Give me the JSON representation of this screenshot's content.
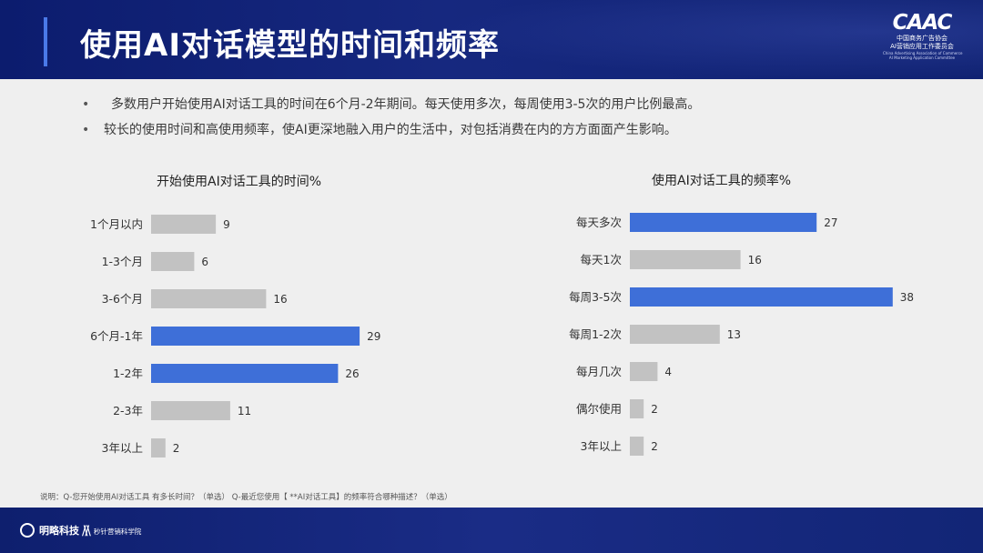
{
  "header": {
    "title": "使用AI对话模型的时间和频率",
    "logo_main": "CAAC",
    "logo_sub1": "中国商务广告协会",
    "logo_sub2": "AI营销应用工作委员会",
    "logo_en1": "China Advertising Association of Commerce",
    "logo_en2": "AI Marketing Application Committee"
  },
  "bullets": [
    "多数用户开始使用AI对话工具的时间在6个月-2年期间。每天使用多次，每周使用3-5次的用户比例最高。",
    "较长的使用时间和高使用频率，使AI更深地融入用户的生活中，对包括消费在内的方方面面产生影响。"
  ],
  "bullet_symbol": "•",
  "colors": {
    "highlight": "#3e6fd8",
    "normal": "#c2c2c2",
    "background": "#efefef",
    "header": "#13247a"
  },
  "chart_data": [
    {
      "type": "bar",
      "orientation": "horizontal",
      "title": "开始使用AI对话工具的时间%",
      "categories": [
        "1个月以内",
        "1-3个月",
        "3-6个月",
        "6个月-1年",
        "1-2年",
        "2-3年",
        "3年以上"
      ],
      "values": [
        9,
        6,
        16,
        29,
        26,
        11,
        2
      ],
      "highlighted": [
        false,
        false,
        false,
        true,
        true,
        false,
        false
      ],
      "xlim": [
        0,
        38
      ],
      "grid": false,
      "legend": "none"
    },
    {
      "type": "bar",
      "orientation": "horizontal",
      "title": "使用AI对话工具的频率%",
      "categories": [
        "每天多次",
        "每天1次",
        "每周3-5次",
        "每周1-2次",
        "每月几次",
        "偶尔使用",
        "3年以上"
      ],
      "values": [
        27,
        16,
        38,
        13,
        4,
        2,
        2
      ],
      "highlighted": [
        true,
        false,
        true,
        false,
        false,
        false,
        false
      ],
      "xlim": [
        0,
        38
      ],
      "grid": false,
      "legend": "none"
    }
  ],
  "footnote": "说明：Q-您开始使用AI对话工具 有多长时间？（单选） Q-最近您使用【 **AI对话工具】的频率符合哪种描述？（单选）",
  "footer": {
    "brand1": "明略科技",
    "brand2": "秒针营销科学院"
  }
}
